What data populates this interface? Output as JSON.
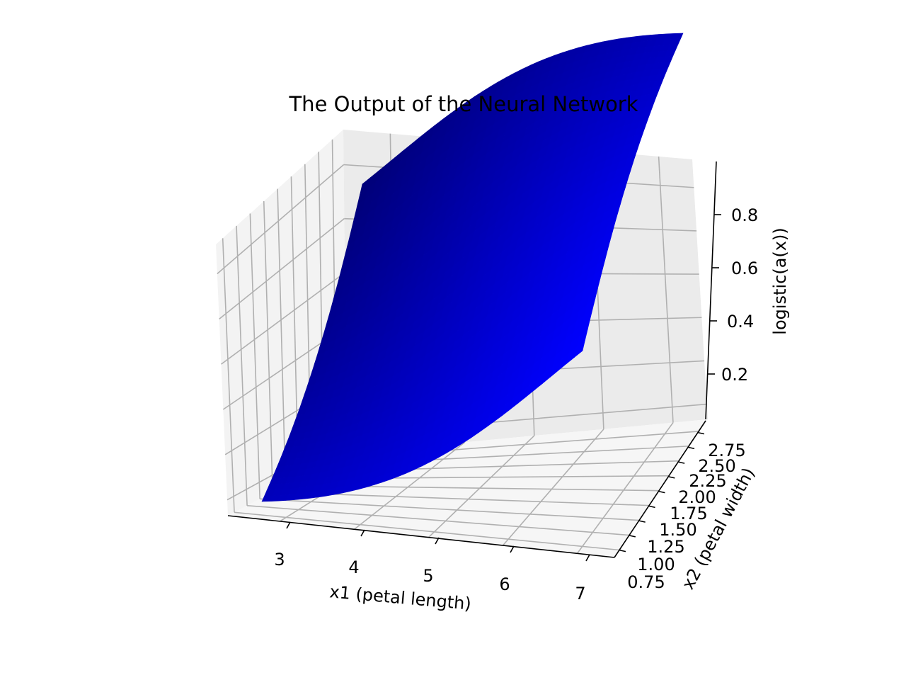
{
  "chart_data": {
    "type": "surface",
    "title": "The Output of the Neural Network",
    "xlabel": "x1 (petal length)",
    "ylabel": "x2 (petal width)",
    "zlabel": "logistic(a(x))",
    "x_ticks": [
      "3",
      "4",
      "5",
      "6",
      "7"
    ],
    "y_ticks": [
      "0.75",
      "1.00",
      "1.25",
      "1.50",
      "1.75",
      "2.00",
      "2.25",
      "2.50",
      "2.75"
    ],
    "z_ticks": [
      "0.2",
      "0.4",
      "0.6",
      "0.8"
    ],
    "surface_color": "#0000ff",
    "corner_values": [
      {
        "x1": 2.3,
        "x2": 0.7,
        "z": 0.07
      },
      {
        "x1": 7.0,
        "x2": 0.7,
        "z": 0.37
      },
      {
        "x1": 2.3,
        "x2": 2.9,
        "z": 0.37
      },
      {
        "x1": 7.0,
        "x2": 2.9,
        "z": 0.94
      }
    ],
    "grid": true
  }
}
